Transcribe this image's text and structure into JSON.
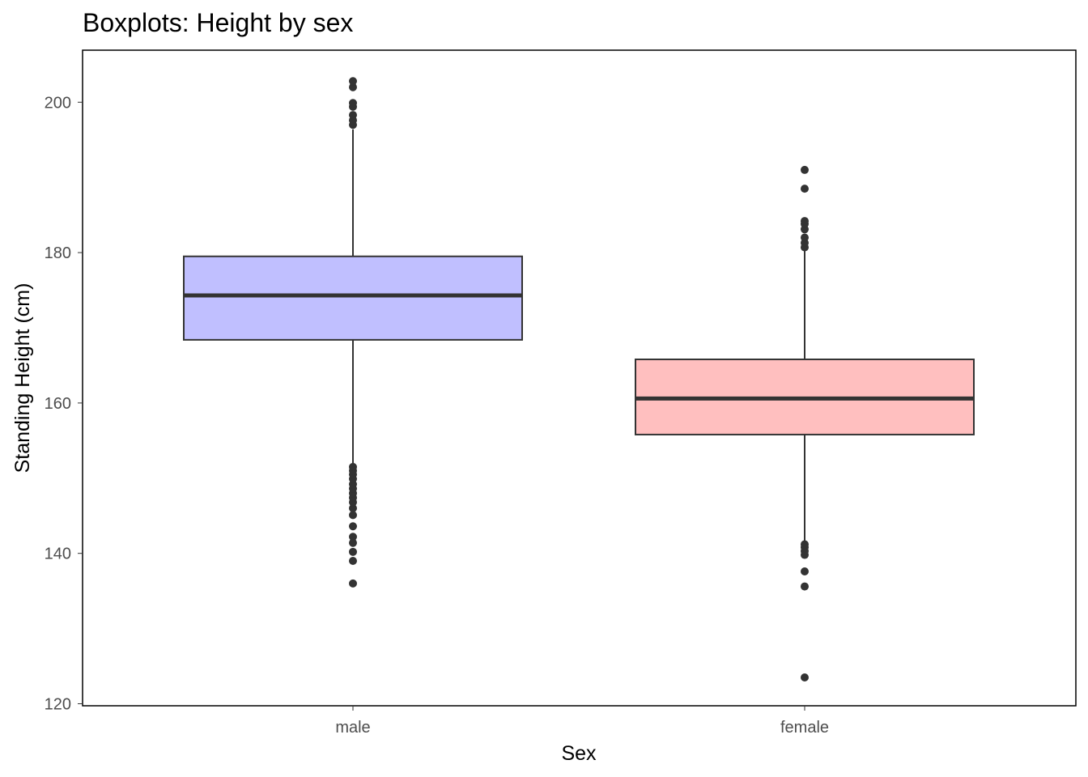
{
  "chart_data": {
    "type": "boxplot",
    "title": "Boxplots: Height by sex",
    "xlabel": "Sex",
    "ylabel": "Standing Height (cm)",
    "ylim": [
      120,
      207
    ],
    "yticks": [
      120,
      140,
      160,
      180,
      200
    ],
    "grid": false,
    "categories": [
      "male",
      "female"
    ],
    "boxes": [
      {
        "category": "male",
        "fill": "#c0bfff",
        "q1": 168.4,
        "median": 174.3,
        "q3": 179.5,
        "whisker_low": 152.0,
        "whisker_high": 196.4,
        "outliers": [
          136.0,
          139.0,
          140.2,
          141.4,
          142.2,
          143.6,
          145.1,
          146.0,
          146.8,
          147.4,
          148.0,
          148.6,
          149.2,
          149.9,
          150.5,
          151.0,
          151.5,
          197.0,
          197.6,
          198.3,
          199.4,
          199.9,
          202.0,
          202.8
        ]
      },
      {
        "category": "female",
        "fill": "#ffbfbf",
        "q1": 155.8,
        "median": 160.6,
        "q3": 165.8,
        "whisker_low": 141.5,
        "whisker_high": 180.3,
        "outliers": [
          123.5,
          135.6,
          137.6,
          139.8,
          140.3,
          140.8,
          141.2,
          180.7,
          181.3,
          182.0,
          183.1,
          183.8,
          184.2,
          188.5,
          191.0
        ]
      }
    ],
    "colors": {
      "line": "#333333",
      "point": "#333333",
      "frame": "#000000"
    }
  }
}
